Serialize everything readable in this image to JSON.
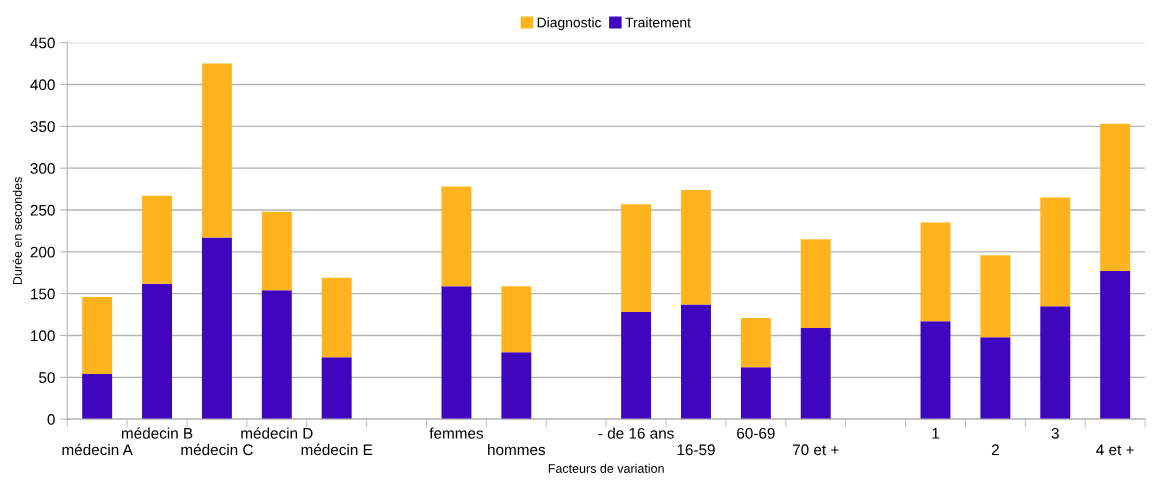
{
  "chart_data": {
    "type": "bar",
    "stacked": true,
    "xlabel": "Facteurs de variation",
    "ylabel": "Durée en secondes",
    "categories": [
      "médecin A",
      "médecin B",
      "médecin C",
      "médecin D",
      "médecin E",
      null,
      "femmes",
      "hommes",
      null,
      "- de 16 ans",
      "16-59",
      "60-69",
      "70 et +",
      null,
      "1",
      "2",
      "3",
      "4 et +"
    ],
    "series": [
      {
        "name": "Traitement",
        "color": "#3f06bf",
        "values": [
          54,
          162,
          217,
          154,
          74,
          null,
          159,
          80,
          null,
          128,
          137,
          62,
          109,
          null,
          117,
          98,
          135,
          177
        ]
      },
      {
        "name": "Diagnostic",
        "color": "#ffb41e",
        "values": [
          92,
          105,
          208,
          94,
          95,
          null,
          119,
          79,
          null,
          129,
          137,
          59,
          106,
          null,
          118,
          98,
          130,
          176
        ]
      }
    ],
    "ylim": [
      0,
      450
    ],
    "yticks": [
      0,
      50,
      100,
      150,
      200,
      250,
      300,
      350,
      400,
      450
    ],
    "grid": "y",
    "legend": "top"
  }
}
